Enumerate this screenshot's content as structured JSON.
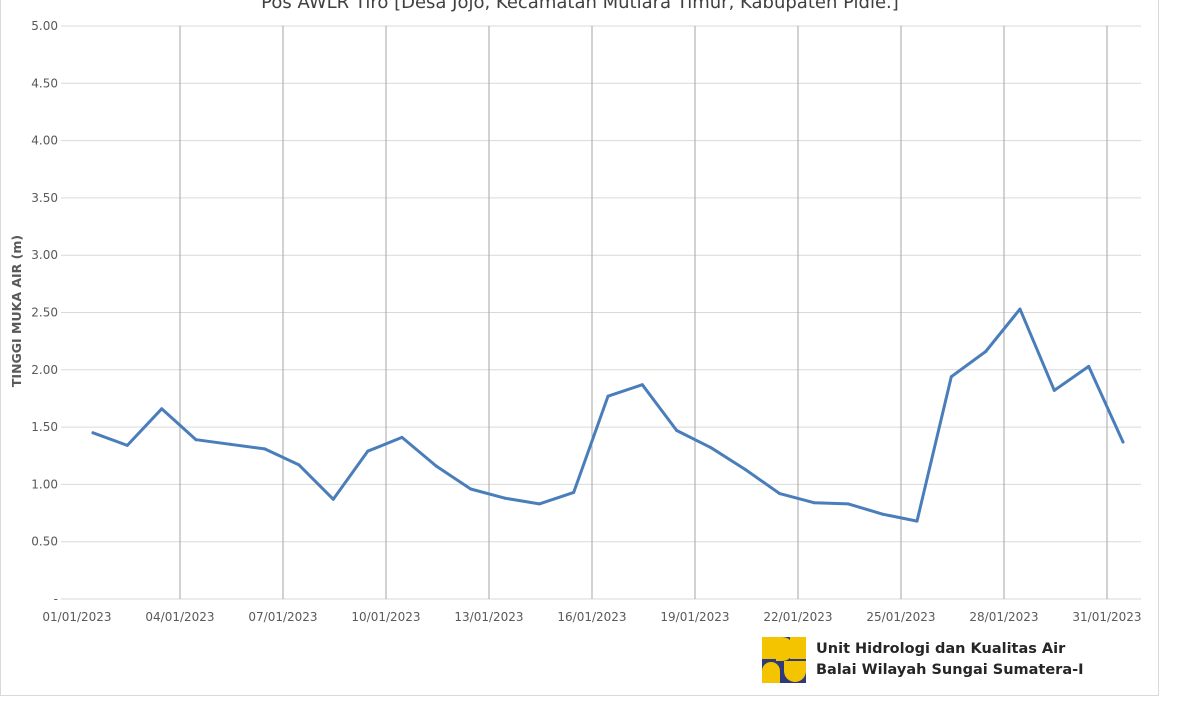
{
  "chart_data": {
    "type": "line",
    "title": "Pos AWLR Tiro [Desa Jojo, Kecamatan Mutiara Timur, Kabupaten Pidie.]",
    "ylabel": "TINGGI MUKA AIR (m)",
    "xlabel": "",
    "ylim": [
      0,
      5
    ],
    "y_ticks": [
      "-",
      "0.50",
      "1.00",
      "1.50",
      "2.00",
      "2.50",
      "3.00",
      "3.50",
      "4.00",
      "4.50",
      "5.00"
    ],
    "x_ticks": [
      "01/01/2023",
      "04/01/2023",
      "07/01/2023",
      "10/01/2023",
      "13/01/2023",
      "16/01/2023",
      "19/01/2023",
      "22/01/2023",
      "25/01/2023",
      "28/01/2023",
      "31/01/2023"
    ],
    "grid": true,
    "color": "#4a7ebb",
    "x": [
      "01/01/2023",
      "02/01/2023",
      "03/01/2023",
      "04/01/2023",
      "05/01/2023",
      "06/01/2023",
      "07/01/2023",
      "08/01/2023",
      "09/01/2023",
      "10/01/2023",
      "11/01/2023",
      "12/01/2023",
      "13/01/2023",
      "14/01/2023",
      "15/01/2023",
      "16/01/2023",
      "17/01/2023",
      "18/01/2023",
      "19/01/2023",
      "20/01/2023",
      "21/01/2023",
      "22/01/2023",
      "23/01/2023",
      "24/01/2023",
      "25/01/2023",
      "26/01/2023",
      "27/01/2023",
      "28/01/2023",
      "29/01/2023",
      "30/01/2023",
      "31/01/2023"
    ],
    "values": [
      1.45,
      1.34,
      1.66,
      1.39,
      1.35,
      1.31,
      1.17,
      0.87,
      1.29,
      1.41,
      1.16,
      0.96,
      0.88,
      0.83,
      0.93,
      1.77,
      1.87,
      1.47,
      1.32,
      1.13,
      0.92,
      0.84,
      0.83,
      0.74,
      0.68,
      1.94,
      2.16,
      2.53,
      1.82,
      2.03,
      1.37
    ]
  },
  "logo": {
    "line1": "Unit Hidrologi dan Kualitas Air",
    "line2": "Balai Wilayah Sungai Sumatera-I",
    "colors": {
      "yellow": "#f5c400",
      "blue": "#2e3a7a"
    }
  }
}
